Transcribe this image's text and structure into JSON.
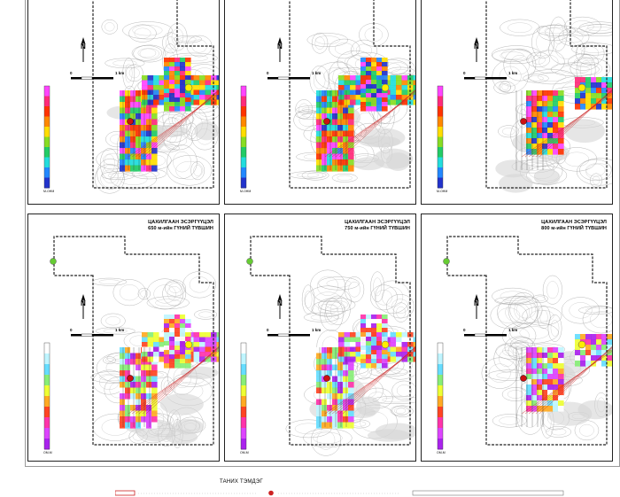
{
  "panels": [
    {
      "id": "p1",
      "title": [],
      "scale_left": "0",
      "scale_right": "1 km",
      "north": "N",
      "colorbar": "resistivity",
      "colorbar_min": "M-OHM",
      "stage": "full"
    },
    {
      "id": "p2",
      "title": [],
      "scale_left": "0",
      "scale_right": "1 km",
      "north": "N",
      "colorbar": "resistivity",
      "colorbar_min": "M-OHM",
      "stage": "full"
    },
    {
      "id": "p3",
      "title": [],
      "scale_left": "0",
      "scale_right": "1 km",
      "north": "N",
      "colorbar": "resistivity",
      "colorbar_min": "M-OHM",
      "stage": "patches"
    },
    {
      "id": "p4",
      "title": [
        "ЦАХИЛГААН ЭСЭРГҮҮЦЭЛ",
        "650 м-ийн ГҮНИЙ ТҮВШИН"
      ],
      "scale_left": "0",
      "scale_right": "1 km",
      "north": "N",
      "colorbar": "depth",
      "colorbar_min": "OM-M",
      "stage": "full"
    },
    {
      "id": "p5",
      "title": [
        "ЦАХИЛГААН ЭСЭРГҮҮЦЭЛ",
        "750 м-ийн ГҮНИЙ ТҮВШИН"
      ],
      "scale_left": "0",
      "scale_right": "1 km",
      "north": "N",
      "colorbar": "depth",
      "colorbar_min": "OM-M",
      "stage": "full"
    },
    {
      "id": "p6",
      "title": [
        "ЦАХИЛГААН ЭСЭРГҮҮЦЭЛ",
        "800 м-ийн ГҮНИЙ ТҮВШИН"
      ],
      "scale_left": "0",
      "scale_right": "1 km",
      "north": "N",
      "colorbar": "depth",
      "colorbar_min": "OM-M",
      "stage": "patches"
    }
  ],
  "legend": {
    "title": "ТАНИХ ТЭМДЭГ"
  },
  "colors": {
    "resistivity_ramp": [
      "#ff44ff",
      "#ff2a7a",
      "#ff3300",
      "#ff8800",
      "#ffdd00",
      "#88dd22",
      "#22cc66",
      "#22dddd",
      "#2288ff",
      "#2233cc"
    ],
    "depth_ramp": [
      "#ffffff",
      "#bff5ff",
      "#66ddff",
      "#88ee77",
      "#eeff33",
      "#ffaa22",
      "#ff4422",
      "#ff33aa",
      "#dd44ff",
      "#aa22ee"
    ],
    "boundary": "#222222",
    "drill_marker": "#cc1111",
    "target_marker": "#ffee00",
    "section_line": "#cc2222"
  }
}
